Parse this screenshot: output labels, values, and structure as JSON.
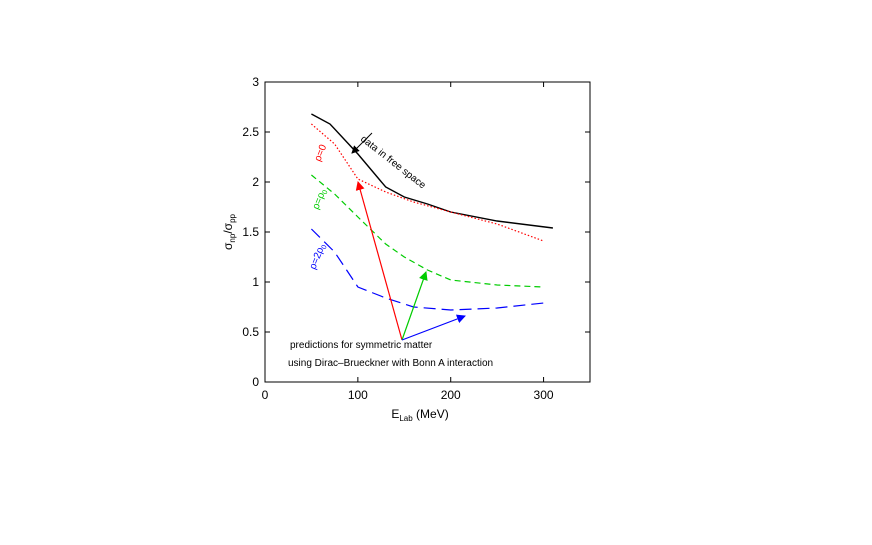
{
  "chart_data": {
    "type": "line",
    "xlabel_main": "E",
    "xlabel_sub": "Lab",
    "xlabel_unit": " (MeV)",
    "ylabel_parts": [
      "σ",
      "np",
      "/σ",
      "pp"
    ],
    "xlim": [
      0,
      350
    ],
    "ylim": [
      0,
      3
    ],
    "xticks": [
      0,
      100,
      200,
      300
    ],
    "yticks": [
      0,
      0.5,
      1,
      1.5,
      2,
      2.5,
      3
    ],
    "ytick_labels": [
      "0",
      "0.5",
      "1",
      "1.5",
      "2",
      "2.5",
      "3"
    ],
    "grid": false,
    "series": [
      {
        "name": "data in free space",
        "color": "#000000",
        "dash": "solid",
        "x": [
          50,
          70,
          100,
          130,
          150,
          175,
          200,
          250,
          310
        ],
        "y": [
          2.68,
          2.58,
          2.28,
          1.95,
          1.85,
          1.78,
          1.7,
          1.61,
          1.54
        ]
      },
      {
        "name": "ρ=0",
        "color": "#ff0000",
        "dash": "dotted",
        "x": [
          50,
          75,
          100,
          130,
          160,
          200,
          250,
          300
        ],
        "y": [
          2.58,
          2.38,
          2.03,
          1.9,
          1.8,
          1.7,
          1.58,
          1.41
        ]
      },
      {
        "name": "ρ=ρ",
        "name_sub": "0",
        "color": "#00cc00",
        "dash": "dashed",
        "x": [
          50,
          75,
          100,
          130,
          150,
          175,
          200,
          250,
          300
        ],
        "y": [
          2.07,
          1.88,
          1.65,
          1.38,
          1.25,
          1.12,
          1.02,
          0.97,
          0.95
        ]
      },
      {
        "name": "ρ=2ρ",
        "name_sub": "0",
        "color": "#0000ff",
        "dash": "longdash",
        "x": [
          50,
          75,
          100,
          130,
          160,
          200,
          250,
          300
        ],
        "y": [
          1.53,
          1.3,
          0.95,
          0.84,
          0.75,
          0.72,
          0.74,
          0.79
        ]
      }
    ],
    "annotations": [
      {
        "text": "data in free space",
        "color": "#000000"
      },
      {
        "text": "predictions for symmetric matter",
        "color": "#000000"
      },
      {
        "text": "using Dirac–Brueckner with Bonn A interaction",
        "color": "#000000"
      }
    ]
  }
}
